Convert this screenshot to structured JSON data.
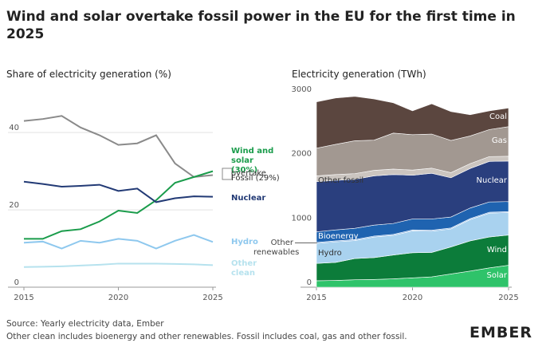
{
  "header": {
    "title": "Wind and solar overtake fossil power in the EU for the first time in 2025"
  },
  "chart_data": [
    {
      "type": "line",
      "title": "Share of electricity generation (%)",
      "x": [
        2015,
        2016,
        2017,
        2018,
        2019,
        2020,
        2021,
        2022,
        2023,
        2024,
        2025
      ],
      "xlim": [
        2015,
        2025
      ],
      "xticks": [
        2015,
        2020,
        2025
      ],
      "ylim": [
        0,
        52
      ],
      "yticks": [
        0,
        20,
        40
      ],
      "grid": true,
      "annotation": "overtake",
      "series": [
        {
          "name": "Fossil (29%)",
          "color": "#8a8a8a",
          "values": [
            43,
            43.5,
            44.3,
            41.3,
            39.3,
            36.8,
            37.2,
            39.3,
            32,
            28.5,
            29
          ]
        },
        {
          "name": "Wind and solar (30%)",
          "color": "#1a9c4b",
          "values": [
            12.5,
            12.5,
            14.5,
            15,
            17,
            19.8,
            19.2,
            22.5,
            27,
            28.5,
            30
          ]
        },
        {
          "name": "Nuclear",
          "color": "#223a75",
          "values": [
            27.3,
            26.7,
            26,
            26.2,
            26.5,
            24.9,
            25.5,
            22,
            23,
            23.5,
            23.4
          ]
        },
        {
          "name": "Hydro",
          "color": "#8ec8ee",
          "values": [
            11.5,
            11.8,
            10,
            12,
            11.5,
            12.5,
            12,
            10,
            12,
            13.5,
            11.7
          ]
        },
        {
          "name": "Other clean",
          "color": "#b6e2ee",
          "values": [
            5.2,
            5.3,
            5.4,
            5.6,
            5.8,
            6.1,
            6.1,
            6.1,
            6,
            5.9,
            5.7
          ]
        }
      ]
    },
    {
      "type": "stacked_area",
      "title": "Electricity generation (TWh)",
      "x": [
        2015,
        2016,
        2017,
        2018,
        2019,
        2020,
        2021,
        2022,
        2023,
        2024,
        2025
      ],
      "xlim": [
        2015,
        2025
      ],
      "xticks": [
        2015,
        2020,
        2025
      ],
      "ylim": [
        0,
        3000
      ],
      "yticks": [
        0,
        1000,
        2000,
        3000
      ],
      "series": [
        {
          "name": "Solar",
          "color": "#2fc36a",
          "values": [
            100,
            105,
            115,
            120,
            130,
            145,
            160,
            205,
            250,
            300,
            340
          ]
        },
        {
          "name": "Wind",
          "color": "#0c7c3a",
          "values": [
            270,
            280,
            330,
            340,
            370,
            390,
            380,
            420,
            470,
            480,
            470
          ]
        },
        {
          "name": "Hydro",
          "color": "#a9d2ef",
          "values": [
            310,
            320,
            280,
            320,
            305,
            340,
            330,
            280,
            330,
            370,
            350
          ]
        },
        {
          "name": "Other\nrenewables",
          "color": "#6fa3dd",
          "values": [
            15,
            15,
            15,
            15,
            15,
            15,
            15,
            15,
            15,
            15,
            15
          ]
        },
        {
          "name": "Bioenergy",
          "color": "#1f63b0",
          "values": [
            165,
            170,
            175,
            170,
            170,
            170,
            175,
            170,
            165,
            160,
            155
          ]
        },
        {
          "name": "Nuclear",
          "color": "#2a3f7e",
          "values": [
            780,
            770,
            760,
            765,
            760,
            680,
            710,
            610,
            615,
            630,
            630
          ]
        },
        {
          "name": "Other fossil",
          "color": "#cbc5c0",
          "values": [
            90,
            90,
            90,
            85,
            85,
            80,
            80,
            80,
            75,
            75,
            75
          ]
        },
        {
          "name": "Gas",
          "color": "#a29891",
          "values": [
            430,
            470,
            510,
            470,
            560,
            550,
            530,
            500,
            430,
            420,
            460
          ]
        },
        {
          "name": "Coal",
          "color": "#5b463f",
          "values": [
            720,
            720,
            690,
            640,
            470,
            370,
            470,
            450,
            330,
            290,
            290
          ]
        }
      ]
    }
  ],
  "footer": {
    "source": "Source: Yearly electricity data, Ember",
    "note": "Other clean includes bioenergy and other renewables. Fossil includes coal, gas and other fossil.",
    "logo": "EMBER"
  }
}
